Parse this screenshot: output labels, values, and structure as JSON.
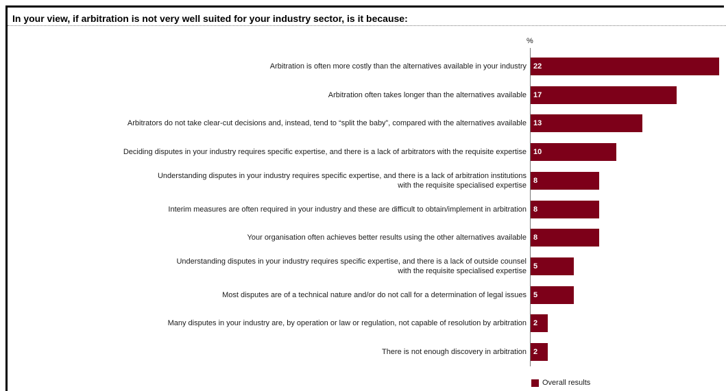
{
  "header": {
    "title": "In your view, if arbitration is not very well suited for your industry sector, is it because:"
  },
  "chart_data": {
    "type": "bar",
    "orientation": "horizontal",
    "title": "In your view, if arbitration is not very well suited for your industry sector, is it because:",
    "unit_label": "%",
    "xlim": [
      0,
      22
    ],
    "grid": false,
    "legend_position": "bottom",
    "categories": [
      "Arbitration is often more costly than the alternatives available in your industry",
      "Arbitration often takes longer than the alternatives available",
      "Arbitrators do not take clear-cut decisions and, instead, tend to “split the baby”, compared with the alternatives available",
      "Deciding disputes in your industry requires specific expertise, and there is a lack of arbitrators with the requisite expertise",
      "Understanding disputes in your industry requires specific expertise, and there is a lack of arbitration institutions\nwith the requisite specialised expertise",
      "Interim measures are often required in your industry and these are difficult to obtain/implement in arbitration",
      "Your organisation often achieves better results using the other alternatives available",
      "Understanding disputes in your industry requires specific expertise, and there is a lack of outside counsel\nwith the requisite specialised expertise",
      "Most disputes are of a technical nature and/or do not call for a determination of legal issues",
      "Many disputes in your industry are, by operation or law or regulation, not capable of resolution by arbitration",
      "There is not enough discovery in arbitration"
    ],
    "series": [
      {
        "name": "Overall results",
        "color": "#7d0019",
        "values": [
          22,
          17,
          13,
          10,
          8,
          8,
          8,
          5,
          5,
          2,
          2
        ]
      }
    ]
  }
}
